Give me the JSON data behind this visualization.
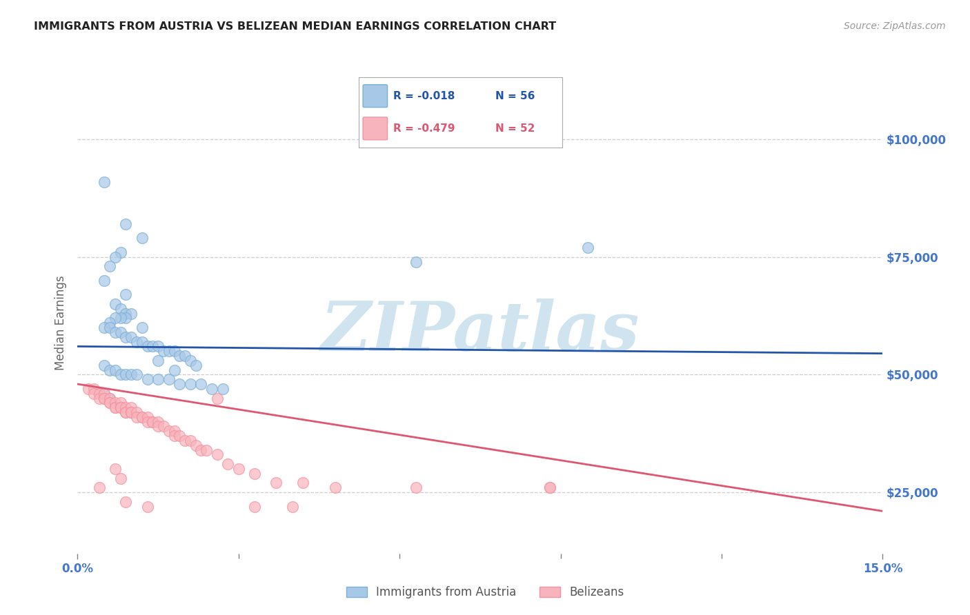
{
  "title": "IMMIGRANTS FROM AUSTRIA VS BELIZEAN MEDIAN EARNINGS CORRELATION CHART",
  "source": "Source: ZipAtlas.com",
  "ylabel": "Median Earnings",
  "yticks": [
    25000,
    50000,
    75000,
    100000
  ],
  "ytick_labels": [
    "$25,000",
    "$50,000",
    "$75,000",
    "$100,000"
  ],
  "xlim": [
    0.0,
    0.15
  ],
  "ylim": [
    12000,
    110000
  ],
  "legend_label1": "Immigrants from Austria",
  "legend_label2": "Belizeans",
  "legend_r1": "R = -0.018",
  "legend_n1": "N = 56",
  "legend_r2": "R = -0.479",
  "legend_n2": "N = 52",
  "blue_color": "#7BAFD4",
  "pink_color": "#F4929F",
  "blue_fill": "#A8C8E8",
  "pink_fill": "#F8B4BC",
  "blue_line_color": "#2255AA",
  "pink_line_color": "#E05570",
  "watermark_text": "ZIPatlas",
  "watermark_color": "#D0E4F0",
  "blue_scatter_x": [
    0.005,
    0.009,
    0.012,
    0.008,
    0.007,
    0.006,
    0.005,
    0.009,
    0.007,
    0.008,
    0.009,
    0.01,
    0.009,
    0.008,
    0.007,
    0.006,
    0.005,
    0.006,
    0.007,
    0.008,
    0.009,
    0.01,
    0.011,
    0.012,
    0.013,
    0.014,
    0.015,
    0.016,
    0.017,
    0.018,
    0.019,
    0.02,
    0.021,
    0.022,
    0.005,
    0.006,
    0.007,
    0.008,
    0.009,
    0.01,
    0.011,
    0.013,
    0.015,
    0.017,
    0.019,
    0.021,
    0.023,
    0.025,
    0.027,
    0.005,
    0.006,
    0.012,
    0.015,
    0.018,
    0.063,
    0.095
  ],
  "blue_scatter_y": [
    91000,
    82000,
    79000,
    76000,
    75000,
    73000,
    70000,
    67000,
    65000,
    64000,
    63000,
    63000,
    62000,
    62000,
    62000,
    61000,
    60000,
    60000,
    59000,
    59000,
    58000,
    58000,
    57000,
    57000,
    56000,
    56000,
    56000,
    55000,
    55000,
    55000,
    54000,
    54000,
    53000,
    52000,
    52000,
    51000,
    51000,
    50000,
    50000,
    50000,
    50000,
    49000,
    49000,
    49000,
    48000,
    48000,
    48000,
    47000,
    47000,
    46000,
    45000,
    60000,
    53000,
    51000,
    74000,
    77000
  ],
  "pink_scatter_x": [
    0.002,
    0.003,
    0.003,
    0.004,
    0.004,
    0.005,
    0.005,
    0.005,
    0.006,
    0.006,
    0.006,
    0.007,
    0.007,
    0.007,
    0.008,
    0.008,
    0.008,
    0.009,
    0.009,
    0.009,
    0.01,
    0.01,
    0.01,
    0.011,
    0.011,
    0.012,
    0.012,
    0.013,
    0.013,
    0.014,
    0.014,
    0.015,
    0.015,
    0.016,
    0.017,
    0.018,
    0.018,
    0.019,
    0.02,
    0.021,
    0.022,
    0.023,
    0.024,
    0.026,
    0.028,
    0.03,
    0.033,
    0.037,
    0.042,
    0.048,
    0.063,
    0.088
  ],
  "pink_scatter_y": [
    47000,
    47000,
    46000,
    46000,
    45000,
    46000,
    45000,
    45000,
    45000,
    44000,
    44000,
    44000,
    43000,
    43000,
    44000,
    43000,
    43000,
    43000,
    42000,
    42000,
    43000,
    42000,
    42000,
    42000,
    41000,
    41000,
    41000,
    41000,
    40000,
    40000,
    40000,
    40000,
    39000,
    39000,
    38000,
    38000,
    37000,
    37000,
    36000,
    36000,
    35000,
    34000,
    34000,
    33000,
    31000,
    30000,
    29000,
    27000,
    27000,
    26000,
    26000,
    26000
  ],
  "pink_extra_x": [
    0.004,
    0.007,
    0.008,
    0.009,
    0.013,
    0.026,
    0.033,
    0.04,
    0.088
  ],
  "pink_extra_y": [
    26000,
    30000,
    28000,
    23000,
    22000,
    45000,
    22000,
    22000,
    26000
  ],
  "blue_trend_x": [
    0.0,
    0.15
  ],
  "blue_trend_y": [
    56000,
    54500
  ],
  "pink_trend_x": [
    0.0,
    0.15
  ],
  "pink_trend_y": [
    48000,
    21000
  ],
  "background_color": "#FFFFFF",
  "grid_color": "#CCCCCC",
  "title_color": "#222222",
  "tick_label_color": "#4477CC",
  "ylabel_color": "#666666"
}
